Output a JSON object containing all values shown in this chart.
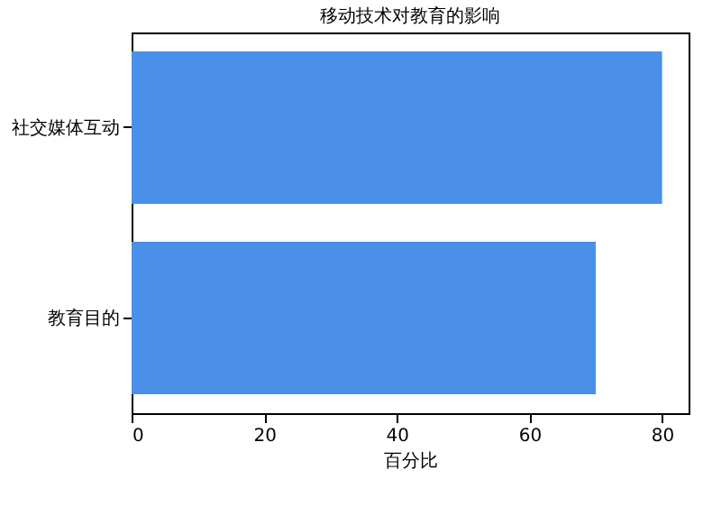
{
  "chart_data": {
    "type": "bar",
    "orientation": "horizontal",
    "title": "移动技术对教育的影响",
    "xlabel": "百分比",
    "categories": [
      "社交媒体互动",
      "教育目的"
    ],
    "values": [
      80,
      70
    ],
    "color": "#4a8fe8",
    "xlim": [
      0,
      84
    ],
    "xticks": [
      0,
      20,
      40,
      60,
      80
    ],
    "grid": false
  }
}
